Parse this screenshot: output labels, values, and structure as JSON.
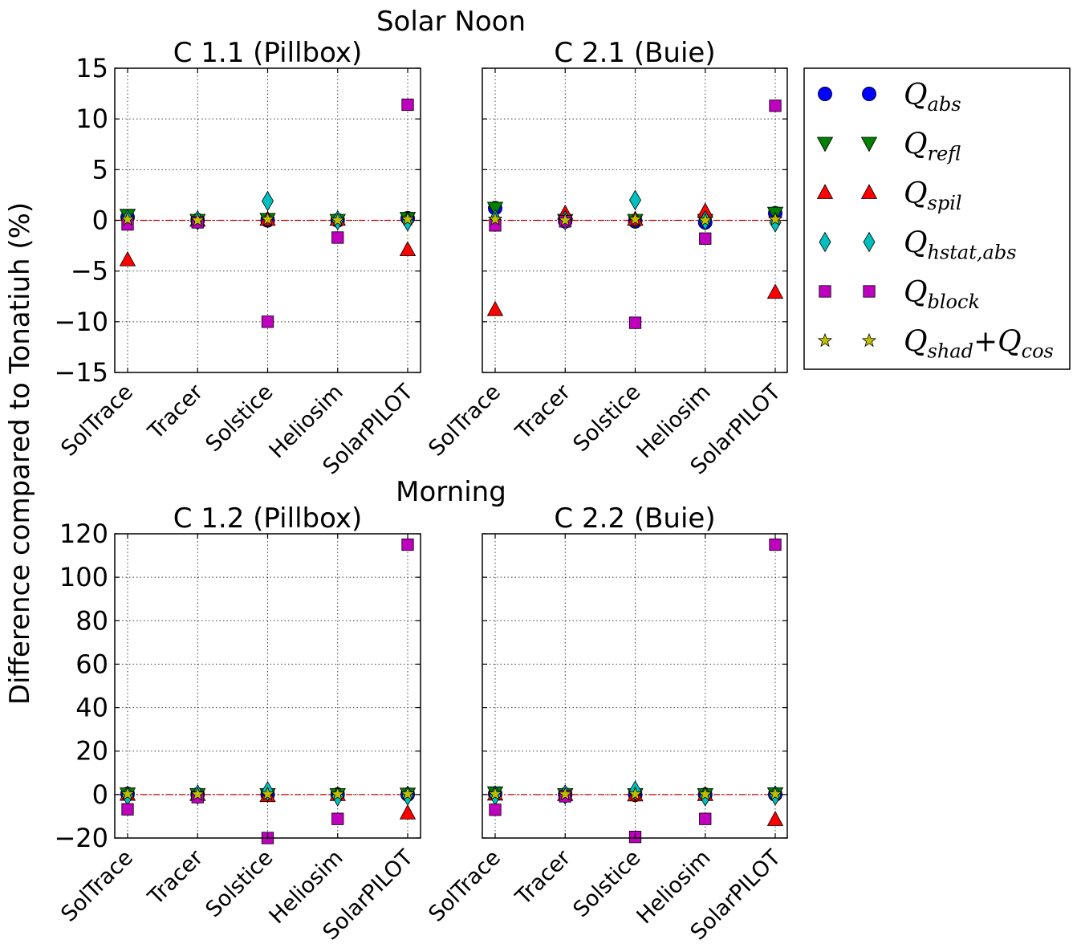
{
  "figure": {
    "ylabel": "Difference compared to Tonatiuh (%)",
    "row_titles": [
      "Solar Noon",
      "Morning"
    ]
  },
  "colors": {
    "Qabs": "#0000ff",
    "Qrefl": "#008000",
    "Qspil": "#ff0000",
    "Qhstat": "#00bfbf",
    "Qblock": "#bf00bf",
    "Qshad": "#bfbf00",
    "zero_line": "#d40000"
  },
  "legend": {
    "placement": "right of top row",
    "entries": [
      {
        "key": "Qabs",
        "base": "Q",
        "sub": "abs",
        "suffix": "",
        "marker": "circle"
      },
      {
        "key": "Qrefl",
        "base": "Q",
        "sub": "refl",
        "suffix": "",
        "marker": "triangle-down"
      },
      {
        "key": "Qspil",
        "base": "Q",
        "sub": "spil",
        "suffix": "",
        "marker": "triangle-up"
      },
      {
        "key": "Qhstat",
        "base": "Q",
        "sub": "hstat,abs",
        "suffix": "",
        "marker": "diamond"
      },
      {
        "key": "Qblock",
        "base": "Q",
        "sub": "block",
        "suffix": "",
        "marker": "square"
      },
      {
        "key": "Qshad",
        "base": "Q",
        "sub": "shad",
        "suffix": "+",
        "base2": "Q",
        "sub2": "cos",
        "marker": "star"
      }
    ]
  },
  "chart_data": [
    {
      "type": "scatter",
      "title": "C 1.1 (Pillbox)",
      "categories": [
        "SolTrace",
        "Tracer",
        "Solstice",
        "Heliosim",
        "SolarPILOT"
      ],
      "ylim": [
        -15,
        15
      ],
      "yticks": [
        "15",
        "10",
        "5",
        "0",
        "−5",
        "−10",
        "−15"
      ],
      "ytick_values": [
        15,
        10,
        5,
        0,
        -5,
        -10,
        -15
      ],
      "show_ytick_labels": true,
      "grid": true,
      "series": [
        {
          "key": "Qabs",
          "values": [
            0.3,
            0.0,
            0.0,
            0.0,
            0.2
          ]
        },
        {
          "key": "Qrefl",
          "values": [
            0.5,
            0.0,
            0.1,
            0.0,
            0.2
          ]
        },
        {
          "key": "Qspil",
          "values": [
            -3.9,
            0.0,
            0.1,
            0.1,
            -2.9
          ]
        },
        {
          "key": "Qhstat",
          "values": [
            0.1,
            0.0,
            1.9,
            0.0,
            -0.1
          ]
        },
        {
          "key": "Qblock",
          "values": [
            -0.4,
            -0.2,
            -10.0,
            -1.7,
            11.4
          ]
        },
        {
          "key": "Qshad",
          "values": [
            0.1,
            0.0,
            0.1,
            0.0,
            0.1
          ]
        }
      ]
    },
    {
      "type": "scatter",
      "title": "C 2.1 (Buie)",
      "categories": [
        "SolTrace",
        "Tracer",
        "Solstice",
        "Heliosim",
        "SolarPILOT"
      ],
      "ylim": [
        -15,
        15
      ],
      "yticks": [],
      "ytick_values": [
        15,
        10,
        5,
        0,
        -5,
        -10,
        -15
      ],
      "show_ytick_labels": false,
      "grid": true,
      "series": [
        {
          "key": "Qabs",
          "values": [
            1.2,
            -0.1,
            -0.1,
            -0.2,
            0.7
          ]
        },
        {
          "key": "Qrefl",
          "values": [
            1.2,
            0.0,
            0.0,
            0.0,
            0.7
          ]
        },
        {
          "key": "Qspil",
          "values": [
            -8.8,
            0.7,
            0.1,
            0.9,
            -7.1
          ]
        },
        {
          "key": "Qhstat",
          "values": [
            0.1,
            0.0,
            2.0,
            0.0,
            -0.2
          ]
        },
        {
          "key": "Qblock",
          "values": [
            -0.5,
            -0.1,
            -10.1,
            -1.8,
            11.3
          ]
        },
        {
          "key": "Qshad",
          "values": [
            0.1,
            0.0,
            0.1,
            0.0,
            0.1
          ]
        }
      ]
    },
    {
      "type": "scatter",
      "title": "C 1.2 (Pillbox)",
      "categories": [
        "SolTrace",
        "Tracer",
        "Solstice",
        "Heliosim",
        "SolarPILOT"
      ],
      "ylim": [
        -20,
        120
      ],
      "yticks": [
        "120",
        "100",
        "80",
        "60",
        "40",
        "20",
        "0",
        "−20"
      ],
      "ytick_values": [
        120,
        100,
        80,
        60,
        40,
        20,
        0,
        -20
      ],
      "show_ytick_labels": true,
      "grid": true,
      "series": [
        {
          "key": "Qabs",
          "values": [
            0.3,
            0.0,
            0.0,
            0.0,
            0.0
          ]
        },
        {
          "key": "Qrefl",
          "values": [
            0.3,
            0.0,
            0.0,
            0.0,
            0.2
          ]
        },
        {
          "key": "Qspil",
          "values": [
            0.1,
            0.0,
            -0.5,
            0.0,
            -8.5
          ]
        },
        {
          "key": "Qhstat",
          "values": [
            -0.5,
            0.0,
            1.5,
            -0.8,
            -0.5
          ]
        },
        {
          "key": "Qblock",
          "values": [
            -6.8,
            -1.2,
            -20.0,
            -11.2,
            115.0
          ]
        },
        {
          "key": "Qshad",
          "values": [
            0.2,
            0.1,
            0.2,
            0.1,
            0.2
          ]
        }
      ]
    },
    {
      "type": "scatter",
      "title": "C 2.2 (Buie)",
      "categories": [
        "SolTrace",
        "Tracer",
        "Solstice",
        "Heliosim",
        "SolarPILOT"
      ],
      "ylim": [
        -20,
        120
      ],
      "yticks": [],
      "ytick_values": [
        120,
        100,
        80,
        60,
        40,
        20,
        0,
        -20
      ],
      "show_ytick_labels": false,
      "grid": true,
      "series": [
        {
          "key": "Qabs",
          "values": [
            0.3,
            0.0,
            -0.1,
            -0.1,
            0.0
          ]
        },
        {
          "key": "Qrefl",
          "values": [
            0.8,
            0.0,
            0.0,
            0.0,
            0.4
          ]
        },
        {
          "key": "Qspil",
          "values": [
            0.2,
            0.0,
            -0.2,
            0.0,
            -11.5
          ]
        },
        {
          "key": "Qhstat",
          "values": [
            -0.4,
            0.0,
            1.8,
            -0.8,
            -0.4
          ]
        },
        {
          "key": "Qblock",
          "values": [
            -7.0,
            -0.8,
            -19.5,
            -11.2,
            115.0
          ]
        },
        {
          "key": "Qshad",
          "values": [
            0.2,
            0.1,
            0.2,
            0.1,
            0.2
          ]
        }
      ]
    }
  ]
}
